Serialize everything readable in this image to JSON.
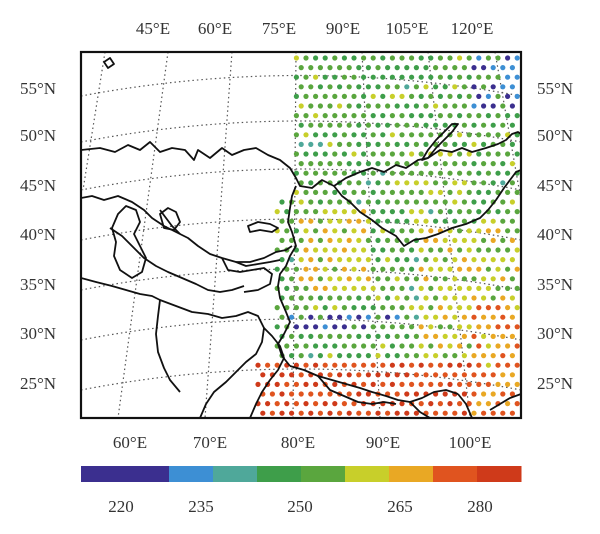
{
  "map": {
    "top_lon_labels": [
      "45°E",
      "60°E",
      "75°E",
      "90°E",
      "105°E",
      "120°E"
    ],
    "bottom_lon_labels": [
      "60°E",
      "70°E",
      "80°E",
      "90°E",
      "100°E"
    ],
    "left_lat_labels": [
      "55°N",
      "50°N",
      "45°N",
      "40°N",
      "35°N",
      "30°N",
      "25°N"
    ],
    "right_lat_labels": [
      "55°N",
      "50°N",
      "45°N",
      "40°N",
      "35°N",
      "30°N",
      "25°N"
    ]
  },
  "colorbar": {
    "tick_labels": [
      "220",
      "235",
      "250",
      "265",
      "280"
    ],
    "colors": [
      "#3b2f8f",
      "#3b2f8f",
      "#3d8fd4",
      "#4fa89a",
      "#3e9e4a",
      "#5aa63e",
      "#c8cf2a",
      "#e9a824",
      "#e0541f",
      "#cf3a1a"
    ]
  },
  "colors": {
    "palette": [
      "#3b2f8f",
      "#3d8fd4",
      "#4fa89a",
      "#3e9e4a",
      "#5aa63e",
      "#c8cf2a",
      "#e9a824",
      "#e0541f",
      "#cf3a1a"
    ],
    "frame": "#111111",
    "grid": "#555555"
  }
}
